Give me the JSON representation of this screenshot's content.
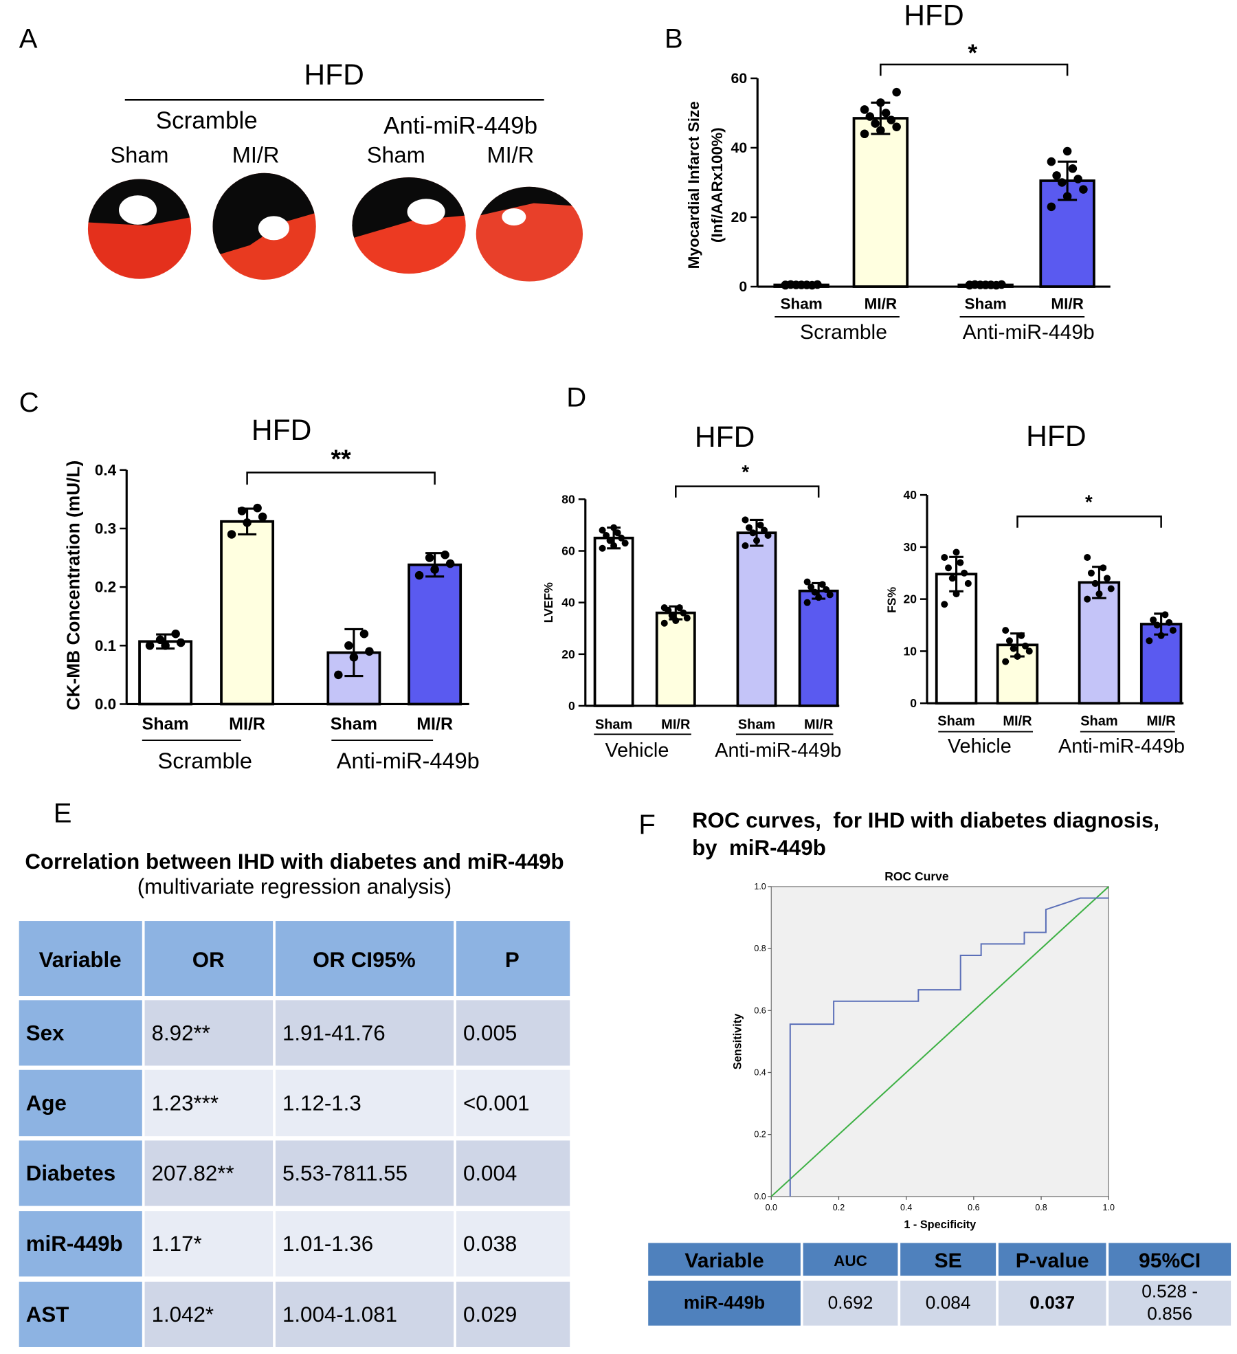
{
  "panel_labels": [
    "A",
    "B",
    "C",
    "D",
    "E",
    "F"
  ],
  "panel_a": {
    "title": "HFD",
    "groups": [
      "Scramble",
      "Anti-miR-449b"
    ],
    "columns": [
      "Sham",
      "MI/R",
      "Sham",
      "MI/R"
    ]
  },
  "chart_data": [
    {
      "type": "bar",
      "title": "HFD",
      "y_label": [
        "Myocardial Infarct Size",
        "(Inf/AARx100%)"
      ],
      "categories": [
        "Sham",
        "MI/R",
        "Sham",
        "MI/R"
      ],
      "groups": [
        "Scramble",
        "Anti-miR-449b"
      ],
      "values": [
        0.5,
        48.5,
        0.5,
        30.5
      ],
      "errors": [
        0.3,
        4.5,
        0.3,
        5.5
      ],
      "colors": [
        "#ffffff",
        "#ffffe0",
        "#c4c4f8",
        "#5a5af0"
      ],
      "points": [
        [
          0.4,
          0.5,
          0.6,
          0.5,
          0.4,
          0.6,
          0.5,
          0.5
        ],
        [
          44,
          45,
          46,
          47,
          48,
          49,
          50,
          51,
          53,
          56
        ],
        [
          0.4,
          0.5,
          0.6,
          0.5,
          0.4,
          0.6,
          0.5,
          0.5
        ],
        [
          23,
          26,
          28,
          30,
          31,
          32,
          34,
          36,
          39
        ]
      ],
      "ylim": [
        0,
        60
      ],
      "yticks": [
        0,
        20,
        40,
        60
      ],
      "significance": "*"
    },
    {
      "type": "bar",
      "title": "HFD",
      "y_label": [
        "CK-MB Concentration (mU/L)"
      ],
      "categories": [
        "Sham",
        "MI/R",
        "Sham",
        "MI/R"
      ],
      "groups": [
        "Scramble",
        "Anti-miR-449b"
      ],
      "values": [
        0.107,
        0.312,
        0.088,
        0.238
      ],
      "errors": [
        0.012,
        0.022,
        0.04,
        0.02
      ],
      "colors": [
        "#ffffff",
        "#ffffe0",
        "#c4c4f8",
        "#5a5af0"
      ],
      "points": [
        [
          0.1,
          0.1,
          0.105,
          0.11,
          0.12
        ],
        [
          0.29,
          0.31,
          0.32,
          0.33,
          0.335
        ],
        [
          0.05,
          0.08,
          0.09,
          0.1,
          0.12
        ],
        [
          0.22,
          0.23,
          0.24,
          0.25,
          0.255
        ]
      ],
      "ylim": [
        0,
        0.4
      ],
      "yticks": [
        {
          "value": 0,
          "label": "0.0"
        },
        0.1,
        0.2,
        0.3,
        0.4
      ],
      "significance": "**"
    },
    {
      "type": "bar",
      "title": "HFD",
      "y_label": [
        "LVEF%"
      ],
      "categories": [
        "Sham",
        "MI/R",
        "Sham",
        "MI/R"
      ],
      "groups": [
        "Vehicle",
        "Anti-miR-449b"
      ],
      "values": [
        65,
        36,
        67,
        44.5
      ],
      "errors": [
        4,
        2.5,
        5,
        3
      ],
      "colors": [
        "#ffffff",
        "#ffffe0",
        "#c4c4f8",
        "#5a5af0"
      ],
      "points": [
        [
          61,
          62,
          63,
          64,
          65,
          66,
          67,
          68,
          69
        ],
        [
          32,
          33,
          34,
          35,
          36,
          37,
          38,
          38
        ],
        [
          62,
          64,
          66,
          67,
          68,
          69,
          70,
          72
        ],
        [
          40,
          42,
          43,
          44,
          45,
          46,
          47,
          48
        ]
      ],
      "ylim": [
        0,
        80
      ],
      "yticks": [
        0,
        20,
        40,
        60,
        80
      ],
      "significance": "*"
    },
    {
      "type": "bar",
      "title": "HFD",
      "y_label": [
        "FS%"
      ],
      "categories": [
        "Sham",
        "MI/R",
        "Sham",
        "MI/R"
      ],
      "groups": [
        "Vehicle",
        "Anti-miR-449b"
      ],
      "values": [
        24.8,
        11.2,
        23.2,
        15.2
      ],
      "errors": [
        3.3,
        2.2,
        3,
        2
      ],
      "colors": [
        "#ffffff",
        "#ffffe0",
        "#c4c4f8",
        "#5a5af0"
      ],
      "points": [
        [
          19,
          21,
          23,
          24,
          25,
          26,
          27,
          28,
          29
        ],
        [
          8,
          9,
          10,
          10.5,
          11,
          12,
          13,
          14
        ],
        [
          20,
          21,
          22,
          23,
          24,
          25,
          26,
          28
        ],
        [
          12,
          13,
          14,
          15,
          15.5,
          16,
          17
        ]
      ],
      "ylim": [
        0,
        40
      ],
      "yticks": [
        0,
        10,
        20,
        30,
        40
      ],
      "significance": "*"
    },
    {
      "type": "line",
      "title": "ROC Curve",
      "x_label": "1 - Specificity",
      "y_label": "Sensitivity",
      "xlim": [
        0,
        1
      ],
      "ylim": [
        0,
        1
      ],
      "xticks": [
        {
          "value": 0,
          "label": "0.0"
        },
        0.2,
        0.4,
        0.6,
        0.8,
        {
          "value": 1,
          "label": "1.0"
        }
      ],
      "yticks": [
        {
          "value": 0,
          "label": "0.0"
        },
        0.2,
        0.4,
        0.6,
        0.8,
        {
          "value": 1,
          "label": "1.0"
        }
      ],
      "series": [
        {
          "color": "#5b6fb8",
          "x": [
            0.056,
            0.056,
            0.185,
            0.185,
            0.436,
            0.436,
            0.561,
            0.561,
            0.622,
            0.622,
            0.75,
            0.75,
            0.814,
            0.814,
            0.916,
            1.0
          ],
          "y": [
            0,
            0.556,
            0.556,
            0.63,
            0.63,
            0.667,
            0.667,
            0.778,
            0.778,
            0.815,
            0.815,
            0.852,
            0.852,
            0.926,
            0.963,
            0.963
          ]
        },
        {
          "color": "#3cb043",
          "x": [
            0,
            1
          ],
          "y": [
            0,
            1
          ]
        }
      ]
    }
  ],
  "table_e": {
    "title": "Correlation between IHD with diabetes and miR-449b",
    "subtitle": "(multivariate regression analysis)",
    "header": [
      "Variable",
      "OR",
      "OR CI95%",
      "P"
    ],
    "rows": [
      [
        "Sex",
        "8.92**",
        "1.91-41.76",
        "0.005"
      ],
      [
        "Age",
        "1.23***",
        "1.12-1.3",
        "<0.001"
      ],
      [
        "Diabetes",
        "207.82**",
        "5.53-7811.55",
        "0.004"
      ],
      [
        "miR-449b",
        "1.17*",
        "1.01-1.36",
        "0.038"
      ],
      [
        "AST",
        "1.042*",
        "1.004-1.081",
        "0.029"
      ]
    ]
  },
  "table_f": {
    "title": [
      "ROC curves,  for IHD with diabetes diagnosis,",
      "by  miR-449b"
    ],
    "header": [
      "Variable",
      "AUC",
      "SE",
      "P-value",
      "95%CI"
    ],
    "rows": [
      [
        "miR-449b",
        "0.692",
        "0.084",
        "0.037",
        [
          "0.528 -",
          "0.856"
        ]
      ]
    ]
  }
}
